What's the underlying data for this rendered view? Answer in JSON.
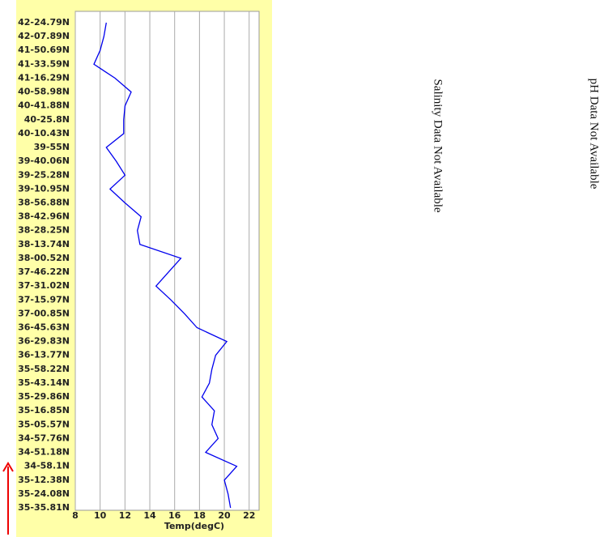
{
  "chart_data": {
    "type": "line",
    "xlabel": "Temp(degC)",
    "color": "#0000ee",
    "categories": [
      "42-24.79N",
      "42-07.89N",
      "41-50.69N",
      "41-33.59N",
      "41-16.29N",
      "40-58.98N",
      "40-41.88N",
      "40-25.8N",
      "40-10.43N",
      "39-55N",
      "39-40.06N",
      "39-25.28N",
      "39-10.95N",
      "38-56.88N",
      "38-42.96N",
      "38-28.25N",
      "38-13.74N",
      "38-00.52N",
      "37-46.22N",
      "37-31.02N",
      "37-15.97N",
      "37-00.85N",
      "36-45.63N",
      "36-29.83N",
      "36-13.77N",
      "35-58.22N",
      "35-43.14N",
      "35-29.86N",
      "35-16.85N",
      "35-05.57N",
      "34-57.76N",
      "34-51.18N",
      "34-58.1N",
      "35-12.38N",
      "35-24.08N",
      "35-35.81N"
    ],
    "values": [
      10.5,
      10.3,
      10.0,
      9.5,
      11.2,
      12.5,
      12.0,
      11.9,
      11.9,
      10.5,
      11.3,
      12.0,
      10.8,
      12.0,
      13.3,
      13.0,
      13.2,
      16.5,
      15.5,
      14.5,
      15.7,
      16.8,
      17.8,
      20.2,
      19.3,
      19.0,
      18.8,
      18.2,
      19.2,
      19.0,
      19.5,
      18.5,
      21.0,
      20.0,
      20.3,
      20.5
    ],
    "xlim": [
      8,
      22.8
    ],
    "xticks": [
      8,
      10,
      12,
      14,
      16,
      18,
      20,
      22
    ],
    "grid": true
  },
  "messages": [
    "Salinity Data Not Available",
    "pH Data Not Available"
  ]
}
